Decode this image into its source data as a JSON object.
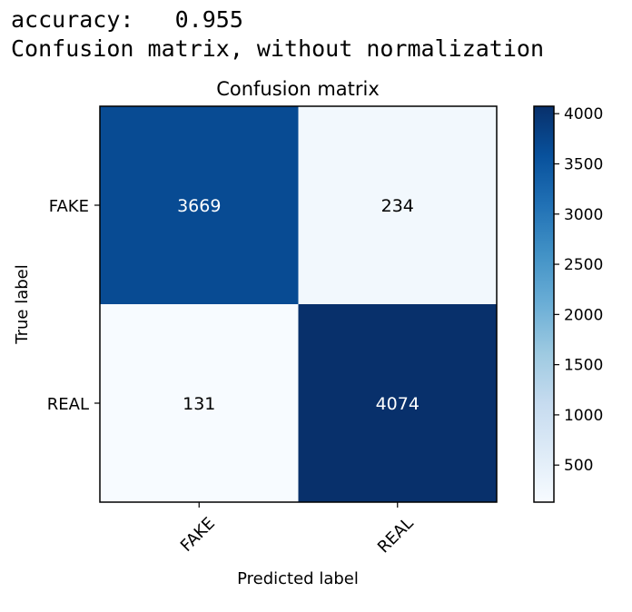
{
  "output": {
    "line1": "accuracy:   0.955",
    "line2": "Confusion matrix, without normalization"
  },
  "chart_data": {
    "type": "heatmap",
    "title": "Confusion matrix",
    "xlabel": "Predicted label",
    "ylabel": "True label",
    "x_categories": [
      "FAKE",
      "REAL"
    ],
    "y_categories": [
      "FAKE",
      "REAL"
    ],
    "values": [
      [
        3669,
        234
      ],
      [
        131,
        4074
      ]
    ],
    "colormap": "Blues",
    "colorbar": {
      "range": [
        131,
        4074
      ],
      "ticks": [
        "500",
        "1000",
        "1500",
        "2000",
        "2500",
        "3000",
        "3500",
        "4000"
      ]
    },
    "colors": {
      "low": "#f7fbff",
      "high": "#08306b",
      "text_light": "#ffffff",
      "text_dark": "#000000"
    }
  }
}
